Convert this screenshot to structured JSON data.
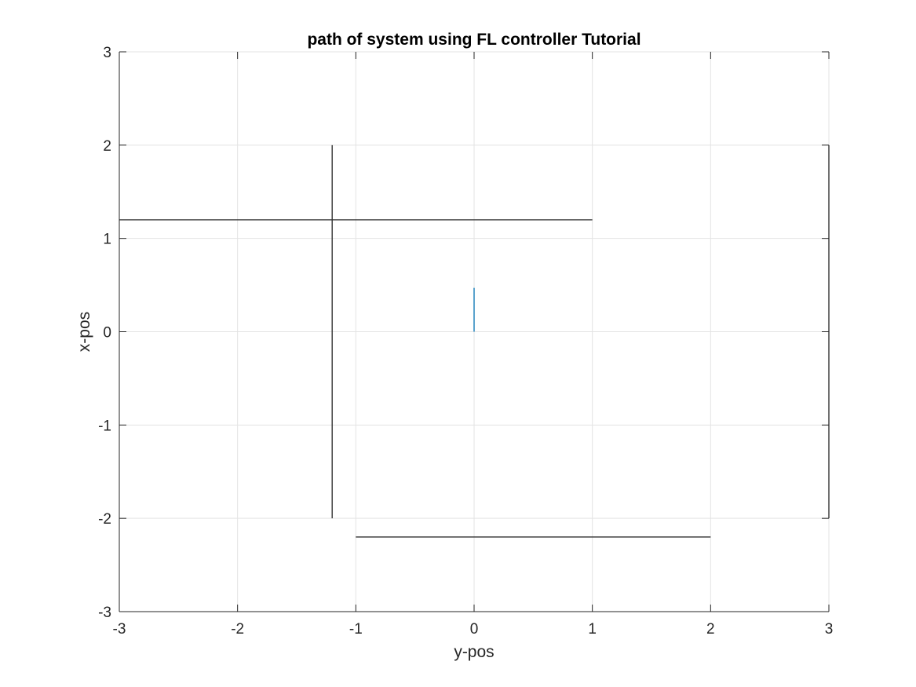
{
  "chart_data": {
    "type": "line",
    "title": "path of system using FL controller Tutorial",
    "xlabel": "y-pos",
    "ylabel": "x-pos",
    "xlim": [
      -3,
      3
    ],
    "ylim": [
      -3,
      3
    ],
    "xticks": [
      -3,
      -2,
      -1,
      0,
      1,
      2,
      3
    ],
    "yticks": [
      -3,
      -2,
      -1,
      0,
      1,
      2,
      3
    ],
    "grid": true,
    "colors": {
      "path": "#5aa3cd",
      "obstacles": "#333333",
      "grid": "#e3e3e3",
      "axes": "#262626"
    },
    "series": [
      {
        "x": [
          0,
          0
        ],
        "y": [
          0,
          0.47
        ]
      }
    ],
    "obstacles": [
      {
        "x": [
          -3,
          1
        ],
        "y": [
          1.2,
          1.2
        ]
      },
      {
        "x": [
          -1.2,
          -1.2
        ],
        "y": [
          -2,
          2
        ]
      },
      {
        "x": [
          -1,
          2
        ],
        "y": [
          -2.2,
          -2.2
        ]
      },
      {
        "x": [
          3,
          3
        ],
        "y": [
          -2,
          2
        ]
      }
    ]
  }
}
